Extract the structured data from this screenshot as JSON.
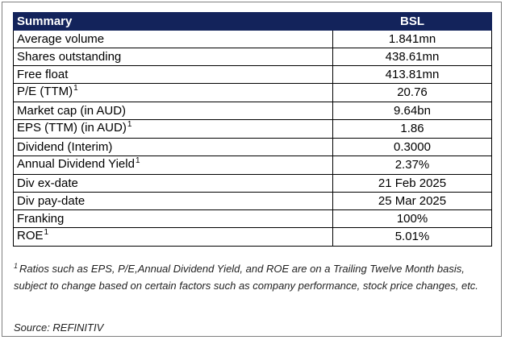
{
  "table": {
    "header": {
      "label": "Summary",
      "value": "BSL"
    },
    "rows": [
      {
        "label": "Average volume",
        "value": "1.841mn",
        "sup": ""
      },
      {
        "label": "Shares outstanding",
        "value": "438.61mn",
        "sup": ""
      },
      {
        "label": "Free float",
        "value": "413.81mn",
        "sup": ""
      },
      {
        "label": "P/E (TTM)",
        "value": "20.76",
        "sup": "1"
      },
      {
        "label": "Market cap (in AUD)",
        "value": "9.64bn",
        "sup": ""
      },
      {
        "label": "EPS (TTM) (in AUD)",
        "value": "1.86",
        "sup": "1"
      },
      {
        "label": "Dividend (Interim)",
        "value": "0.3000",
        "sup": ""
      },
      {
        "label": "Annual Dividend Yield",
        "value": "2.37%",
        "sup": "1"
      },
      {
        "label": "Div ex-date",
        "value": "21 Feb 2025",
        "sup": ""
      },
      {
        "label": "Div pay-date",
        "value": "25 Mar 2025",
        "sup": ""
      },
      {
        "label": "Franking",
        "value": "100%",
        "sup": ""
      },
      {
        "label": "ROE",
        "value": "5.01%",
        "sup": "1"
      }
    ]
  },
  "footnote": {
    "marker": "1",
    "text": "Ratios such as EPS, P/E,Annual Dividend Yield, and ROE are on a Trailing Twelve Month basis, subject to change based on certain factors such as company performance, stock price changes, etc."
  },
  "source": "Source: REFINITIV"
}
